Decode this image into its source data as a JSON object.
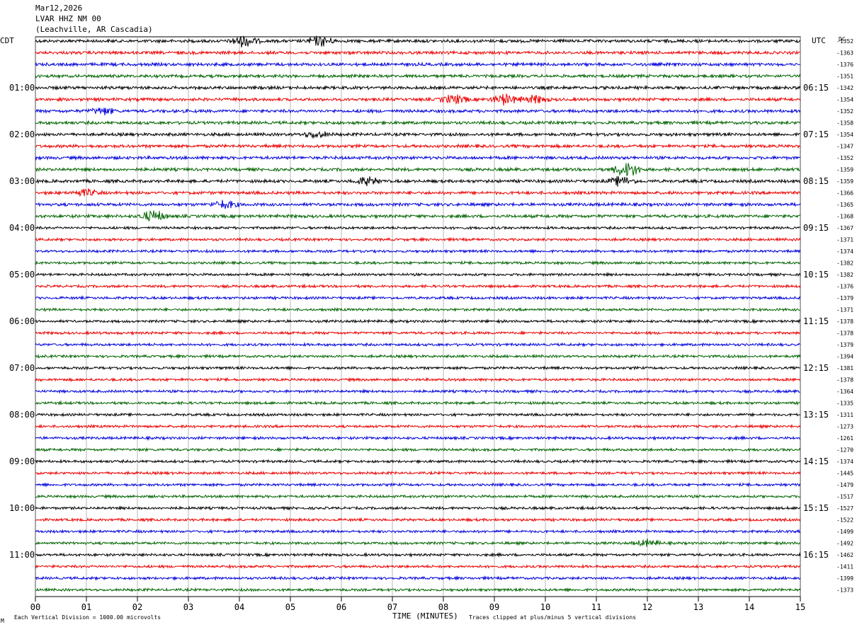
{
  "header": {
    "date": "Mar12,2026",
    "station": "LVAR HHZ NM 00",
    "location": "(Leachville, AR Cascadia)"
  },
  "left_axis_title": "CDT",
  "right_axis_title": "UTC",
  "dc_title": "DC",
  "footer": {
    "scale_note": "Each Vertical Division = 1000.00 microvolts",
    "x_title": "TIME (MINUTES)",
    "clip_note": "Traces clipped at plus/minus 5 vertical divisions",
    "corner_mark": "M"
  },
  "chart_data": {
    "type": "line",
    "xlabel": "TIME (MINUTES)",
    "x_ticks": [
      "00",
      "01",
      "02",
      "03",
      "04",
      "05",
      "06",
      "07",
      "08",
      "09",
      "10",
      "11",
      "12",
      "13",
      "14",
      "15"
    ],
    "xlim": [
      0,
      15
    ],
    "left_time_labels": [
      "01:00",
      "02:00",
      "03:00",
      "04:00",
      "05:00",
      "06:00",
      "07:00",
      "08:00",
      "09:00",
      "10:00",
      "11:00"
    ],
    "right_time_labels": [
      "06:15",
      "07:15",
      "08:15",
      "09:15",
      "10:15",
      "11:15",
      "12:15",
      "13:15",
      "14:15",
      "15:15",
      "16:15"
    ],
    "trace_colors": [
      "#000000",
      "#ee0000",
      "#0000dd",
      "#006400"
    ],
    "trace_count": 48,
    "dc_offsets": [
      -1352,
      -1363,
      -1376,
      -1351,
      -1342,
      -1354,
      -1352,
      -1358,
      -1354,
      -1347,
      -1352,
      -1359,
      -1359,
      -1366,
      -1365,
      -1368,
      -1367,
      -1371,
      -1374,
      -1382,
      -1382,
      -1376,
      -1379,
      -1371,
      -1378,
      -1378,
      -1379,
      -1394,
      -1381,
      -1378,
      -1364,
      -1335,
      -1311,
      -1273,
      -1261,
      -1270,
      -1374,
      -1445,
      -1479,
      -1517,
      -1527,
      -1522,
      -1499,
      -1492,
      -1462,
      -1411,
      -1399,
      -1373
    ],
    "events": [
      {
        "trace": 0,
        "minute": 4.1,
        "amplitude": 2.2
      },
      {
        "trace": 0,
        "minute": 5.6,
        "amplitude": 1.8
      },
      {
        "trace": 5,
        "minute": 8.2,
        "amplitude": 1.6
      },
      {
        "trace": 5,
        "minute": 9.2,
        "amplitude": 1.8
      },
      {
        "trace": 5,
        "minute": 9.8,
        "amplitude": 1.2
      },
      {
        "trace": 6,
        "minute": 1.3,
        "amplitude": 1.2
      },
      {
        "trace": 8,
        "minute": 5.5,
        "amplitude": 1.2
      },
      {
        "trace": 11,
        "minute": 11.6,
        "amplitude": 3.0
      },
      {
        "trace": 12,
        "minute": 6.5,
        "amplitude": 1.4
      },
      {
        "trace": 12,
        "minute": 11.5,
        "amplitude": 1.5
      },
      {
        "trace": 13,
        "minute": 1.0,
        "amplitude": 1.2
      },
      {
        "trace": 14,
        "minute": 3.7,
        "amplitude": 1.4
      },
      {
        "trace": 15,
        "minute": 2.3,
        "amplitude": 2.0
      },
      {
        "trace": 43,
        "minute": 12.0,
        "amplitude": 1.2
      }
    ]
  }
}
